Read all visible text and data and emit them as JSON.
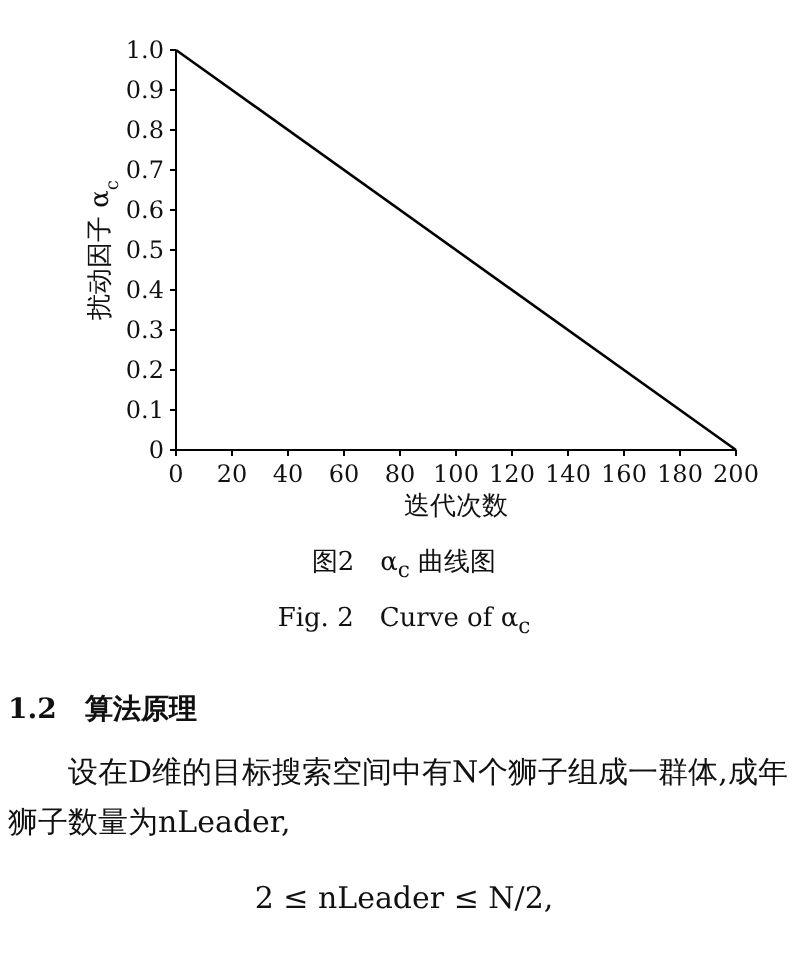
{
  "chart_data": {
    "type": "line",
    "xlabel": "迭代次数",
    "ylabel": "扰动因子 α$_{c}$",
    "x": [
      0,
      200
    ],
    "values": [
      1,
      0
    ],
    "color": "#000000",
    "xlim": [
      0,
      200
    ],
    "ylim": [
      0,
      1
    ],
    "xticks": [
      0,
      20,
      40,
      60,
      80,
      100,
      120,
      140,
      160,
      180,
      200
    ],
    "yticks": [
      0,
      0.1,
      0.2,
      0.3,
      0.4,
      0.5,
      0.6,
      0.7,
      0.8,
      0.9,
      {
        "value": 1,
        "label": "1.0"
      }
    ],
    "annotations": [
      "图2　α$_{c}$ 曲线图",
      "Fig. 2　Curve of α$_{c}$",
      "1.2　算法原理",
      "设在D维的目标搜索空间中有N个狮子组成一群体,成年狮子数量为nLeader,",
      "2 ≤ nLeader ≤ N/2,"
    ]
  }
}
